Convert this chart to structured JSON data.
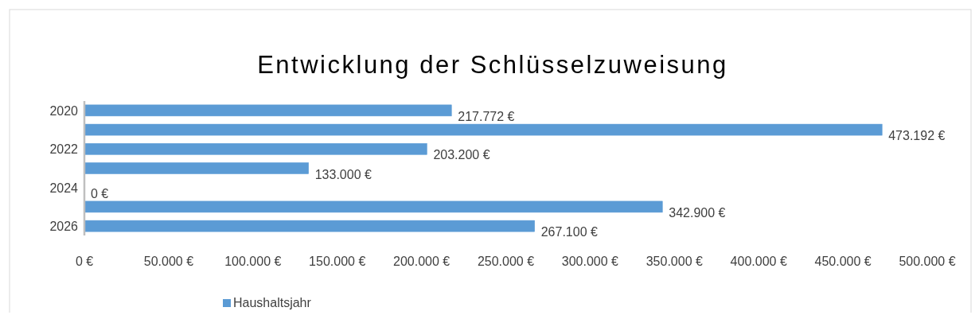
{
  "chart_data": {
    "type": "bar",
    "orientation": "horizontal",
    "title": "Entwicklung der Schlüsselzuweisung",
    "categories": [
      "2020",
      null,
      "2022",
      null,
      "2024",
      null,
      "2026"
    ],
    "series": [
      {
        "name": "Haushaltsjahr",
        "color": "#5b9bd5",
        "values": [
          217772,
          473192,
          203200,
          133000,
          0,
          342900,
          267100
        ],
        "value_labels": [
          "217.772 €",
          "473.192 €",
          "203.200 €",
          "133.000 €",
          "0 €",
          "342.900 €",
          "267.100 €"
        ]
      }
    ],
    "xlim": [
      0,
      500000
    ],
    "xticks": [
      {
        "value": 0,
        "label": "0 €"
      },
      {
        "value": 50000,
        "label": "50.000 €"
      },
      {
        "value": 100000,
        "label": "100.000 €"
      },
      {
        "value": 150000,
        "label": "150.000 €"
      },
      {
        "value": 200000,
        "label": "200.000 €"
      },
      {
        "value": 250000,
        "label": "250.000 €"
      },
      {
        "value": 300000,
        "label": "300.000 €"
      },
      {
        "value": 350000,
        "label": "350.000 €"
      },
      {
        "value": 400000,
        "label": "400.000 €"
      },
      {
        "value": 450000,
        "label": "450.000 €"
      },
      {
        "value": 500000,
        "label": "500.000 €"
      }
    ],
    "grid": false,
    "legend": "bottom"
  }
}
